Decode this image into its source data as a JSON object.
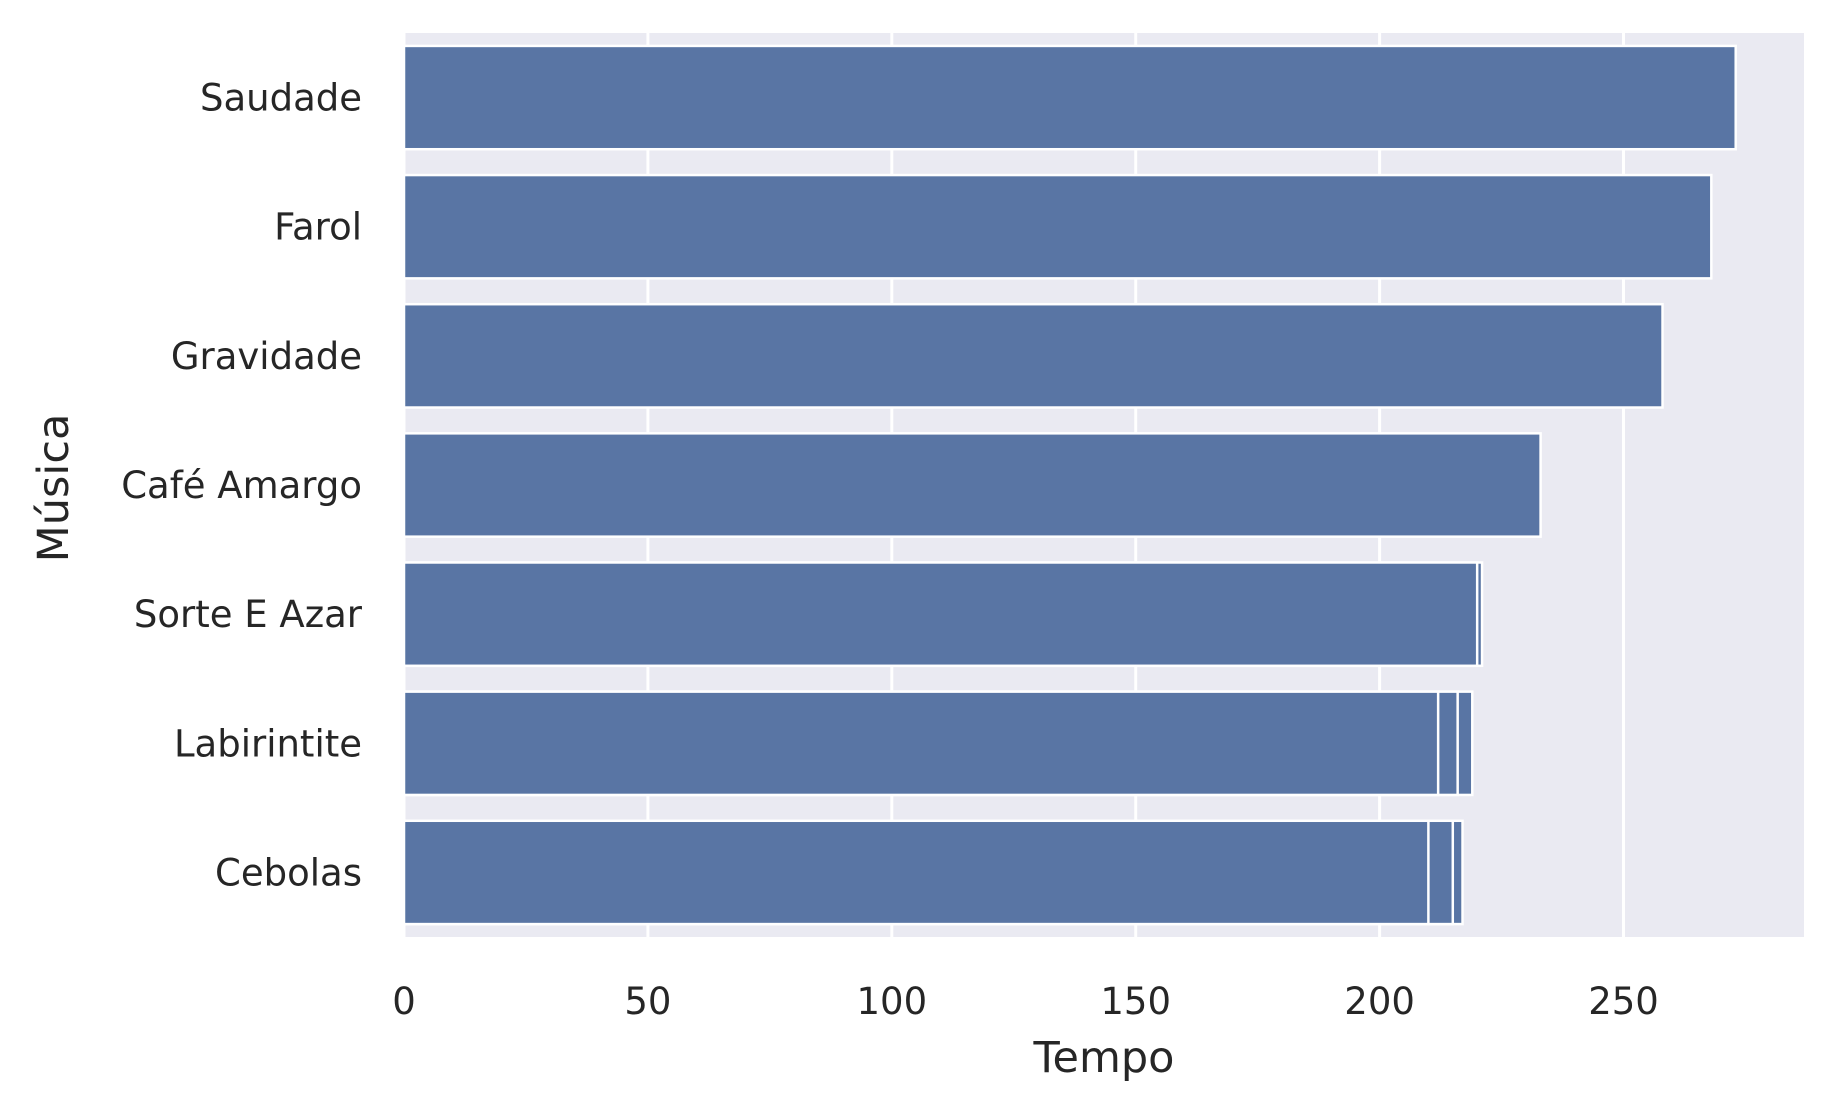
{
  "chart_data": {
    "type": "bar",
    "orientation": "horizontal",
    "xlabel": "Tempo",
    "ylabel": "Música",
    "xlim": [
      0,
      287
    ],
    "xticks": [
      0,
      50,
      100,
      150,
      200,
      250
    ],
    "grid": true,
    "categories": [
      "Saudade",
      "Farol",
      "Gravidade",
      "Café Amargo",
      "Sorte E Azar",
      "Labirintite",
      "Cebolas"
    ],
    "values": [
      [
        273
      ],
      [
        268
      ],
      [
        258
      ],
      [
        233
      ],
      [
        221,
        220
      ],
      [
        219,
        216,
        212
      ],
      [
        217,
        215,
        210
      ]
    ],
    "colors": {
      "bar": "#5975a4",
      "background": "#eaeaf2",
      "grid": "#ffffff",
      "text": "#262626"
    }
  }
}
